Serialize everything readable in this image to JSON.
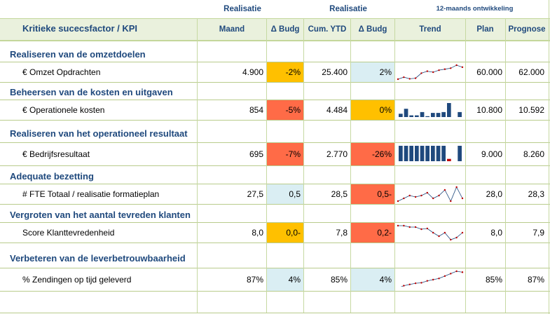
{
  "header": {
    "group1": "Realisatie",
    "group2": "Realisatie",
    "group3": "12-maands ontwikkeling",
    "kpi_col": "Kritieke sucecsfactor / KPI",
    "cols": [
      "Maand",
      "Δ Budg",
      "Cum. YTD",
      "Δ Budg",
      "Trend",
      "Plan",
      "Prognose"
    ]
  },
  "colors": {
    "orange": "#ffc000",
    "red": "#ff6b47",
    "lightblue": "#daeef3",
    "header_bg": "#eaf1dd",
    "title": "#1f497d"
  },
  "rows": [
    {
      "section": "Realiseren van de omzetdoelen",
      "label": "€ Omzet Opdrachten",
      "maand": "4.900",
      "dbudg1": "-2%",
      "cum": "25.400",
      "dbudg2": "2%",
      "plan": "60.000",
      "prognose": "62.000",
      "trend": {
        "type": "line",
        "values": [
          3,
          4,
          3.2,
          3.5,
          6,
          7,
          6.5,
          7.5,
          8,
          8.5,
          10,
          9
        ]
      }
    },
    {
      "section": "Beheersen van de kosten en uitgaven",
      "label": "€ Operationele kosten",
      "maand": "854",
      "dbudg1": "-5%",
      "cum": "4.484",
      "dbudg2": "0%",
      "plan": "10.800",
      "prognose": "10.592",
      "trend": {
        "type": "bar",
        "values": [
          4,
          10,
          2,
          2,
          6,
          1,
          5,
          5,
          6,
          17,
          0,
          6
        ]
      }
    },
    {
      "section": "Realiseren van het operationeel resultaat",
      "label": "€ Bedrijfsresultaat",
      "maand": "695",
      "dbudg1": "-7%",
      "cum": "2.770",
      "dbudg2": "-26%",
      "plan": "9.000",
      "prognose": "8.260",
      "trend": {
        "type": "bar",
        "values": [
          9,
          9,
          9,
          9,
          9,
          9,
          9,
          9,
          9,
          -2,
          0,
          9
        ]
      }
    },
    {
      "section": "Adequate bezetting",
      "label": "# FTE Totaal / realisatie formatieplan",
      "maand": "27,5",
      "dbudg1": "0,5",
      "cum": "28,5",
      "dbudg2": "0,5-",
      "plan": "28,0",
      "prognose": "28,3",
      "trend": {
        "type": "line",
        "values": [
          3,
          4,
          5,
          4.5,
          5,
          6,
          4,
          5,
          7,
          3,
          8,
          4
        ]
      }
    },
    {
      "section": "Vergroten van het aantal tevreden klanten",
      "label": "Score Klanttevredenheid",
      "maand": "8,0",
      "dbudg1": "0,0-",
      "cum": "7,8",
      "dbudg2": "0,2-",
      "plan": "8,0",
      "prognose": "7,9",
      "trend": {
        "type": "line",
        "values": [
          9,
          9,
          8.8,
          8.8,
          8.5,
          8.6,
          8,
          7.5,
          8,
          7,
          7.3,
          8
        ]
      }
    },
    {
      "section": "Verbeteren van de leverbetrouwbaarheid",
      "label": "% Zendingen op tijd geleverd",
      "maand": "87%",
      "dbudg1": "4%",
      "cum": "85%",
      "dbudg2": "4%",
      "plan": "85%",
      "prognose": "87%",
      "trend": {
        "type": "line",
        "values": [
          2,
          3,
          3.5,
          4,
          4.2,
          5,
          5.5,
          6,
          7,
          8,
          9,
          8.6
        ]
      }
    }
  ]
}
